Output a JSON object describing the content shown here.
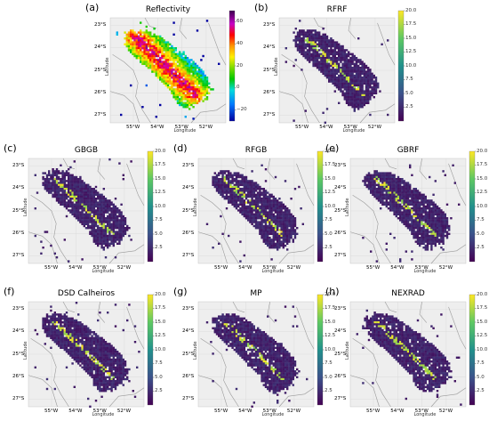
{
  "chart_data": [
    {
      "type": "heatmap",
      "panel": "(a)",
      "title": "Reflectivity",
      "xlabel": "Longitude",
      "ylabel": "Latitude",
      "xticks": [
        "55°W",
        "54°W",
        "53°W",
        "52°W"
      ],
      "yticks": [
        "23°S",
        "24°S",
        "25°S",
        "26°S",
        "27°S"
      ],
      "colorbar": {
        "ticks": [
          "60",
          "40",
          "20",
          "0",
          "−20"
        ],
        "range": [
          -30,
          70
        ],
        "colormap": "NWS reflectivity"
      }
    },
    {
      "type": "heatmap",
      "panel": "(b)",
      "title": "RFRF",
      "xlabel": "Longitude",
      "ylabel": "Latitude",
      "xticks": [
        "55°W",
        "54°W",
        "53°W",
        "52°W"
      ],
      "yticks": [
        "23°S",
        "24°S",
        "25°S",
        "26°S",
        "27°S"
      ],
      "colorbar": {
        "ticks": [
          "20.0",
          "17.5",
          "15.0",
          "12.5",
          "10.0",
          "7.5",
          "5.0",
          "2.5"
        ],
        "range": [
          0,
          20
        ],
        "colormap": "viridis"
      }
    },
    {
      "type": "heatmap",
      "panel": "(c)",
      "title": "GBGB",
      "xlabel": "Longitude",
      "ylabel": "Latitude",
      "xticks": [
        "55°W",
        "54°W",
        "53°W",
        "52°W"
      ],
      "yticks": [
        "23°S",
        "24°S",
        "25°S",
        "26°S",
        "27°S"
      ],
      "colorbar": {
        "ticks": [
          "20.0",
          "17.5",
          "15.0",
          "12.5",
          "10.0",
          "7.5",
          "5.0",
          "2.5"
        ],
        "range": [
          0,
          20
        ],
        "colormap": "viridis"
      }
    },
    {
      "type": "heatmap",
      "panel": "(d)",
      "title": "RFGB",
      "xlabel": "Longitude",
      "ylabel": "Latitude",
      "xticks": [
        "55°W",
        "54°W",
        "53°W",
        "52°W"
      ],
      "yticks": [
        "23°S",
        "24°S",
        "25°S",
        "26°S",
        "27°S"
      ],
      "colorbar": {
        "ticks": [
          "20.0",
          "17.5",
          "15.0",
          "12.5",
          "10.0",
          "7.5",
          "5.0",
          "2.5"
        ],
        "range": [
          0,
          20
        ],
        "colormap": "viridis"
      }
    },
    {
      "type": "heatmap",
      "panel": "(e)",
      "title": "GBRF",
      "xlabel": "Longitude",
      "ylabel": "Latitude",
      "xticks": [
        "55°W",
        "54°W",
        "53°W",
        "52°W"
      ],
      "yticks": [
        "23°S",
        "24°S",
        "25°S",
        "26°S",
        "27°S"
      ],
      "colorbar": {
        "ticks": [
          "20.0",
          "17.5",
          "15.0",
          "12.5",
          "10.0",
          "7.5",
          "5.0",
          "2.5"
        ],
        "range": [
          0,
          20
        ],
        "colormap": "viridis"
      }
    },
    {
      "type": "heatmap",
      "panel": "(f)",
      "title": "DSD Calheiros",
      "xlabel": "Longitude",
      "ylabel": "Latitude",
      "xticks": [
        "55°W",
        "54°W",
        "53°W",
        "52°W"
      ],
      "yticks": [
        "23°S",
        "24°S",
        "25°S",
        "26°S",
        "27°S"
      ],
      "colorbar": {
        "ticks": [
          "20.0",
          "17.5",
          "15.0",
          "12.5",
          "10.0",
          "7.5",
          "5.0",
          "2.5"
        ],
        "range": [
          0,
          20
        ],
        "colormap": "viridis"
      }
    },
    {
      "type": "heatmap",
      "panel": "(g)",
      "title": "MP",
      "xlabel": "Longitude",
      "ylabel": "Latitude",
      "xticks": [
        "55°W",
        "54°W",
        "53°W",
        "52°W"
      ],
      "yticks": [
        "23°S",
        "24°S",
        "25°S",
        "26°S",
        "27°S"
      ],
      "colorbar": {
        "ticks": [
          "20.0",
          "17.5",
          "15.0",
          "12.5",
          "10.0",
          "7.5",
          "5.0",
          "2.5"
        ],
        "range": [
          0,
          20
        ],
        "colormap": "viridis"
      }
    },
    {
      "type": "heatmap",
      "panel": "(h)",
      "title": "NEXRAD",
      "xlabel": "Longitude",
      "ylabel": "Latitude",
      "xticks": [
        "55°W",
        "54°W",
        "53°W",
        "52°W"
      ],
      "yticks": [
        "23°S",
        "24°S",
        "25°S",
        "26°S",
        "27°S"
      ],
      "colorbar": {
        "ticks": [
          "20.0",
          "17.5",
          "15.0",
          "12.5",
          "10.0",
          "7.5",
          "5.0",
          "2.5"
        ],
        "range": [
          0,
          20
        ],
        "colormap": "viridis"
      }
    }
  ]
}
